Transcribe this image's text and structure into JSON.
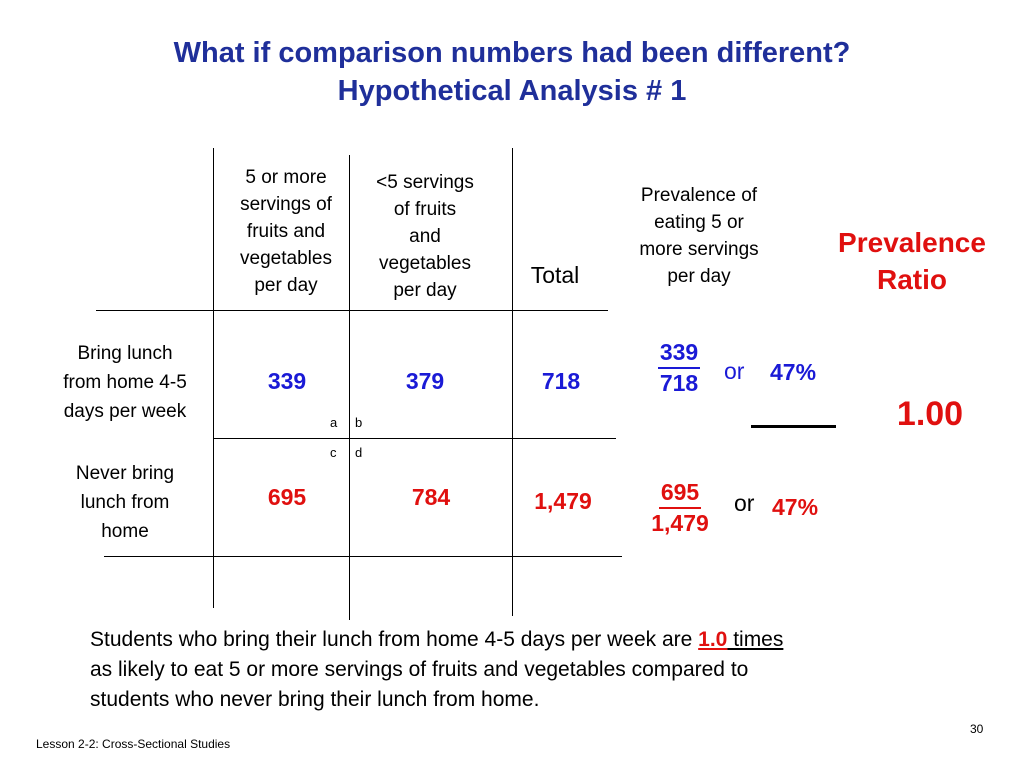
{
  "title": {
    "line1": "What if comparison numbers had been different?",
    "line2": "Hypothetical Analysis # 1"
  },
  "table": {
    "col_headers": [
      [
        "5 or more",
        "servings of",
        "fruits and",
        "vegetables",
        "per day"
      ],
      [
        "<5 servings",
        "of fruits",
        "and",
        "vegetables",
        "per day"
      ]
    ],
    "total_header": "Total",
    "prevalence_header": [
      "Prevalence of",
      "eating  5 or",
      "more servings",
      "per day"
    ],
    "ratio_header": [
      "Prevalence",
      "Ratio"
    ],
    "rows": [
      {
        "label": [
          "Bring lunch",
          "from home 4-5",
          "days per week"
        ],
        "cell_a": "339",
        "cell_b": "379",
        "total": "718",
        "frac_num": "339",
        "frac_den": "718",
        "or_text": "or",
        "percent": "47%"
      },
      {
        "label": [
          "Never bring",
          "lunch from",
          "home"
        ],
        "cell_c": "695",
        "cell_d": "784",
        "total": "1,479",
        "frac_num": "695",
        "frac_den": "1,479",
        "or_text": "or",
        "percent": "47%"
      }
    ],
    "cell_letters": {
      "a": "a",
      "b": "b",
      "c": "c",
      "d": "d"
    },
    "ratio_value": "1.00"
  },
  "conclusion": {
    "part1": "Students who bring their lunch from home 4-5 days per week are ",
    "ratio": "1.0",
    "times": " times",
    "line2": "as likely to eat 5 or more servings of fruits and vegetables compared to",
    "line3": "students who never bring their  lunch from home."
  },
  "footer": {
    "lesson": "Lesson 2-2: Cross-Sectional Studies",
    "page": "30"
  },
  "colors": {
    "title_blue": "#1f2f9a",
    "value_blue": "#1a1ad6",
    "value_red": "#e0100f"
  }
}
